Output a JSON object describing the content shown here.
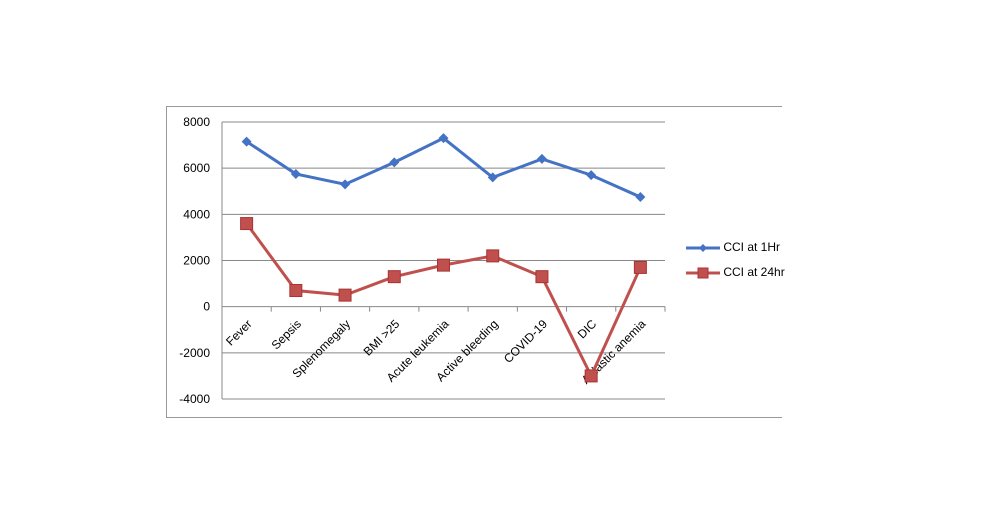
{
  "chart_data": {
    "type": "line",
    "categories": [
      "Fever",
      "Sepsis",
      "Splenomegaly",
      "BMI >25",
      "Acute leukemia",
      "Active bleeding",
      "COVID-19",
      "DIC",
      "Aplastic anemia"
    ],
    "series": [
      {
        "name": "CCI at 1Hr",
        "color": "#4472C4",
        "marker": "diamond",
        "values": [
          7150,
          5750,
          5300,
          6250,
          7300,
          5600,
          6400,
          5700,
          4750
        ]
      },
      {
        "name": "CCI at 24hr",
        "color": "#C0504D",
        "marker": "square",
        "values": [
          3600,
          700,
          500,
          1300,
          1800,
          2200,
          1300,
          -3000,
          1700
        ]
      }
    ],
    "yticks": [
      8000,
      6000,
      4000,
      2000,
      0,
      -2000,
      -4000
    ],
    "ylim": [
      -4000,
      8000
    ],
    "grid": true,
    "legend": "right",
    "title": "",
    "xlabel": "",
    "ylabel": ""
  }
}
